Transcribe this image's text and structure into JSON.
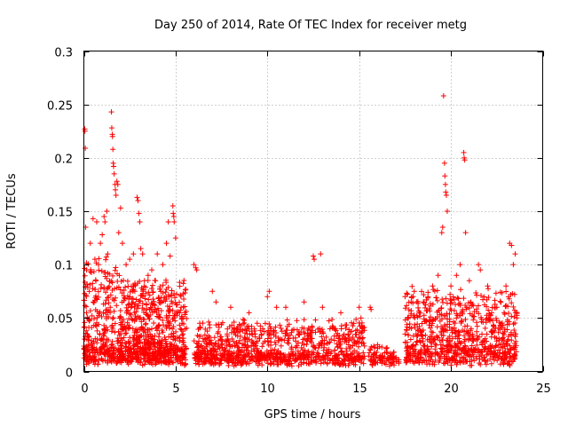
{
  "chart_data": {
    "type": "scatter",
    "title": "Day 250 of 2014, Rate Of TEC Index for receiver metg",
    "xlabel": "GPS time / hours",
    "ylabel": "ROTI / TECUs",
    "xlim": [
      0,
      25
    ],
    "ylim": [
      0,
      0.3
    ],
    "x_ticks": [
      0,
      5,
      10,
      15,
      20,
      25
    ],
    "x_tick_labels": [
      "0",
      "5",
      "10",
      "15",
      "20",
      "25"
    ],
    "y_ticks": [
      0,
      0.05,
      0.1,
      0.15,
      0.2,
      0.25,
      0.3
    ],
    "y_tick_labels": [
      "0",
      "0.05",
      "0.1",
      "0.15",
      "0.2",
      "0.25",
      "0.3"
    ],
    "grid": true,
    "marker": "+",
    "marker_color": "#ff0000",
    "density_profile": [
      {
        "x": [
          0.0,
          2.0
        ],
        "base": [
          0.005,
          0.02
        ],
        "spread": 0.09,
        "count": 340
      },
      {
        "x": [
          2.0,
          5.6
        ],
        "base": [
          0.005,
          0.02
        ],
        "spread": 0.07,
        "count": 720
      },
      {
        "x": [
          6.0,
          15.3
        ],
        "base": [
          0.005,
          0.015
        ],
        "spread": 0.035,
        "count": 960
      },
      {
        "x": [
          15.5,
          17.2
        ],
        "base": [
          0.005,
          0.012
        ],
        "spread": 0.015,
        "count": 90
      },
      {
        "x": [
          17.5,
          23.6
        ],
        "base": [
          0.005,
          0.02
        ],
        "spread": 0.06,
        "count": 780
      }
    ],
    "series": [
      {
        "name": "ROTI",
        "points": [
          [
            0.05,
            0.227
          ],
          [
            0.06,
            0.225
          ],
          [
            0.08,
            0.209
          ],
          [
            0.1,
            0.135
          ],
          [
            0.15,
            0.095
          ],
          [
            0.35,
            0.12
          ],
          [
            0.5,
            0.143
          ],
          [
            0.6,
            0.105
          ],
          [
            0.7,
            0.14
          ],
          [
            0.8,
            0.1
          ],
          [
            0.9,
            0.12
          ],
          [
            1.0,
            0.128
          ],
          [
            1.1,
            0.145
          ],
          [
            1.15,
            0.14
          ],
          [
            1.25,
            0.15
          ],
          [
            1.3,
            0.11
          ],
          [
            1.5,
            0.243
          ],
          [
            1.52,
            0.228
          ],
          [
            1.55,
            0.222
          ],
          [
            1.56,
            0.22
          ],
          [
            1.58,
            0.208
          ],
          [
            1.6,
            0.195
          ],
          [
            1.62,
            0.192
          ],
          [
            1.65,
            0.185
          ],
          [
            1.7,
            0.175
          ],
          [
            1.72,
            0.17
          ],
          [
            1.75,
            0.165
          ],
          [
            1.8,
            0.178
          ],
          [
            1.85,
            0.175
          ],
          [
            1.9,
            0.13
          ],
          [
            2.0,
            0.153
          ],
          [
            2.1,
            0.12
          ],
          [
            2.3,
            0.1
          ],
          [
            2.5,
            0.105
          ],
          [
            2.7,
            0.11
          ],
          [
            2.9,
            0.163
          ],
          [
            2.95,
            0.16
          ],
          [
            3.0,
            0.148
          ],
          [
            3.05,
            0.14
          ],
          [
            3.1,
            0.115
          ],
          [
            3.2,
            0.11
          ],
          [
            3.3,
            0.085
          ],
          [
            3.5,
            0.09
          ],
          [
            3.7,
            0.095
          ],
          [
            3.9,
            0.085
          ],
          [
            4.0,
            0.11
          ],
          [
            4.3,
            0.1
          ],
          [
            4.5,
            0.12
          ],
          [
            4.6,
            0.14
          ],
          [
            4.7,
            0.108
          ],
          [
            4.85,
            0.155
          ],
          [
            4.87,
            0.148
          ],
          [
            4.9,
            0.145
          ],
          [
            4.92,
            0.14
          ],
          [
            5.0,
            0.125
          ],
          [
            5.3,
            0.06
          ],
          [
            5.5,
            0.055
          ],
          [
            6.0,
            0.1
          ],
          [
            6.1,
            0.097
          ],
          [
            6.15,
            0.095
          ],
          [
            7.0,
            0.075
          ],
          [
            7.2,
            0.065
          ],
          [
            8.0,
            0.06
          ],
          [
            9.0,
            0.055
          ],
          [
            10.0,
            0.07
          ],
          [
            10.1,
            0.075
          ],
          [
            10.5,
            0.06
          ],
          [
            11.0,
            0.06
          ],
          [
            12.0,
            0.065
          ],
          [
            12.5,
            0.108
          ],
          [
            12.55,
            0.105
          ],
          [
            12.9,
            0.11
          ],
          [
            13.0,
            0.06
          ],
          [
            14.0,
            0.055
          ],
          [
            15.0,
            0.06
          ],
          [
            15.1,
            0.05
          ],
          [
            15.6,
            0.06
          ],
          [
            15.65,
            0.058
          ],
          [
            16.0,
            0.025
          ],
          [
            17.5,
            0.07
          ],
          [
            18.0,
            0.075
          ],
          [
            18.5,
            0.065
          ],
          [
            19.0,
            0.08
          ],
          [
            19.3,
            0.09
          ],
          [
            19.5,
            0.13
          ],
          [
            19.55,
            0.135
          ],
          [
            19.6,
            0.258
          ],
          [
            19.65,
            0.195
          ],
          [
            19.67,
            0.183
          ],
          [
            19.7,
            0.175
          ],
          [
            19.72,
            0.168
          ],
          [
            19.75,
            0.165
          ],
          [
            19.8,
            0.15
          ],
          [
            20.0,
            0.08
          ],
          [
            20.3,
            0.09
          ],
          [
            20.5,
            0.1
          ],
          [
            20.7,
            0.205
          ],
          [
            20.72,
            0.2
          ],
          [
            20.75,
            0.198
          ],
          [
            20.8,
            0.13
          ],
          [
            21.0,
            0.085
          ],
          [
            21.5,
            0.1
          ],
          [
            21.6,
            0.095
          ],
          [
            22.0,
            0.08
          ],
          [
            22.5,
            0.06
          ],
          [
            23.0,
            0.08
          ],
          [
            23.2,
            0.12
          ],
          [
            23.3,
            0.118
          ],
          [
            23.4,
            0.1
          ],
          [
            23.5,
            0.11
          ]
        ]
      }
    ]
  }
}
